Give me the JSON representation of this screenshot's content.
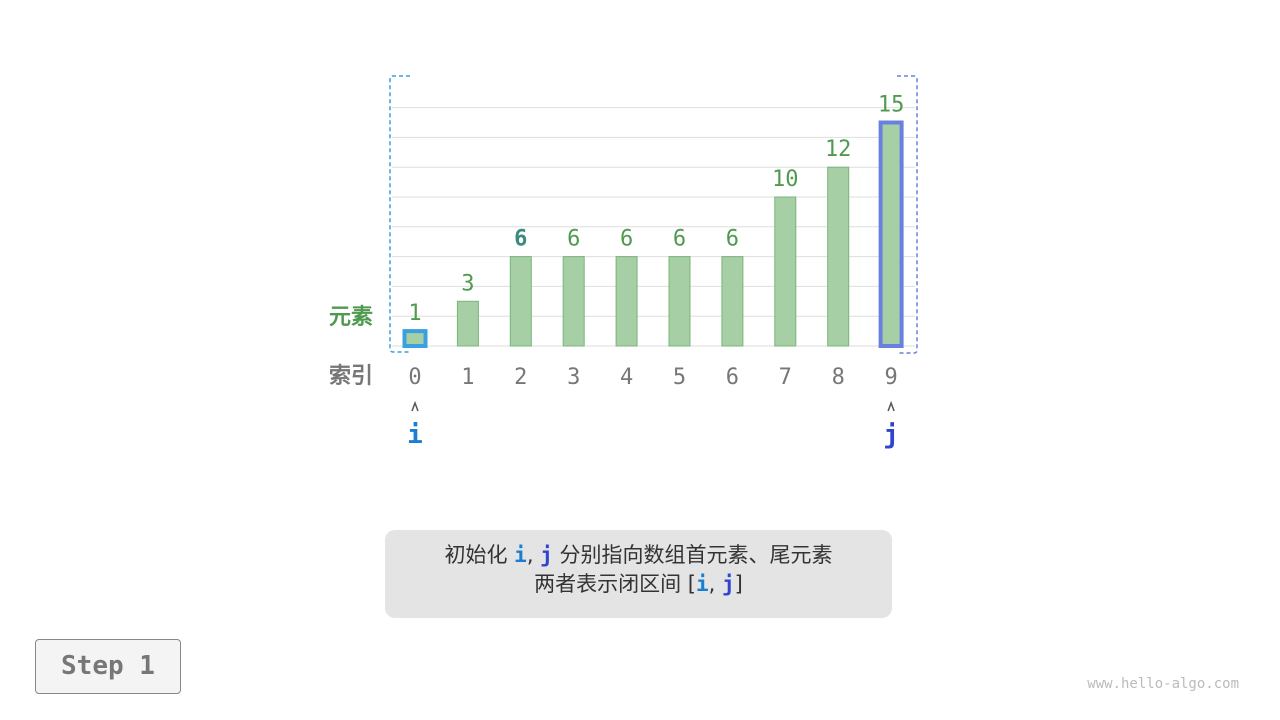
{
  "labels": {
    "elements": "元素",
    "indices": "索引"
  },
  "array": [
    1,
    3,
    6,
    6,
    6,
    6,
    6,
    10,
    12,
    15
  ],
  "highlight_value_index": 2,
  "pointers": [
    {
      "name": "i",
      "index": 0,
      "color": "#1a7fd0"
    },
    {
      "name": "j",
      "index": 9,
      "color": "#2f45d0"
    }
  ],
  "interval_colors": {
    "left": "#3aa0e0",
    "right": "#6a80e0"
  },
  "colors": {
    "bar_fill": "#a6cfa6",
    "bar_stroke": "#7ab47a",
    "value_text": "#4f9a4f",
    "highlight_text": "#3a8a80",
    "index_text": "#777777"
  },
  "caption": {
    "line1_a": "初始化 ",
    "line1_i": "i",
    "line1_sep": ", ",
    "line1_j": "j",
    "line1_b": " 分别指向数组首元素、尾元素",
    "line2_a": "两者表示闭区间 [",
    "line2_i": "i",
    "line2_sep": ", ",
    "line2_j": "j",
    "line2_b": "]"
  },
  "step": "Step 1",
  "watermark": "www.hello-algo.com"
}
